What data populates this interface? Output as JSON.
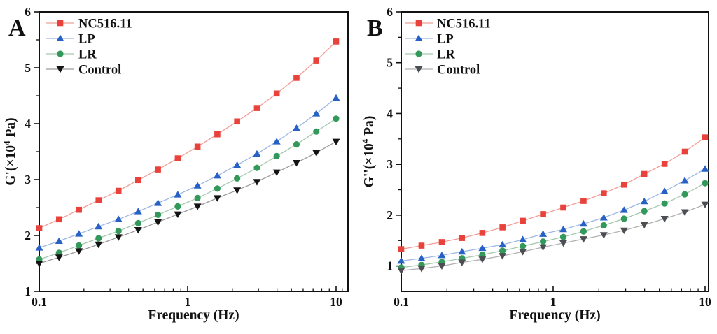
{
  "figure": {
    "background": "#ffffff",
    "border_color": "#111111",
    "panels": [
      {
        "label": "A"
      },
      {
        "label": "B"
      }
    ]
  },
  "chart_data": [
    {
      "type": "line",
      "panel": "A",
      "title": "",
      "legend_position": "top-left",
      "grid": false,
      "x": [
        0.1,
        0.136,
        0.185,
        0.251,
        0.342,
        0.464,
        0.631,
        0.858,
        1.166,
        1.585,
        2.154,
        2.929,
        3.981,
        5.412,
        7.356,
        10
      ],
      "x_axis": {
        "scale": "log",
        "label": "Frequency（Hz）",
        "major_ticks": [
          0.1,
          1,
          10
        ],
        "tick_labels": [
          "0.1",
          "1",
          "10"
        ],
        "minor_ticks": [
          0.2,
          0.3,
          0.4,
          0.5,
          0.6,
          0.7,
          0.8,
          0.9,
          2,
          3,
          4,
          5,
          6,
          7,
          8,
          9,
          11
        ],
        "range": [
          0.1,
          12
        ]
      },
      "y_axis": {
        "label": "G'(×10⁴ Pa)",
        "label_parts": {
          "prefix": "G'(×10",
          "sup": "4",
          "suffix": " Pa)"
        },
        "major_ticks": [
          1,
          2,
          3,
          4,
          5,
          6
        ],
        "tick_labels": [
          "1",
          "2",
          "3",
          "4",
          "5",
          "6"
        ],
        "minor_ticks": [
          1.5,
          2.5,
          3.5,
          4.5,
          5.5
        ],
        "range": [
          1,
          6
        ]
      },
      "series": [
        {
          "name": "NC516.11",
          "marker": "square",
          "marker_color": "#e8423a",
          "line_color": "#f19d98",
          "values": [
            2.13,
            2.29,
            2.46,
            2.63,
            2.8,
            2.99,
            3.18,
            3.38,
            3.59,
            3.81,
            4.04,
            4.28,
            4.54,
            4.82,
            5.13,
            5.47
          ]
        },
        {
          "name": "LP",
          "marker": "triangle-up",
          "marker_color": "#2761c5",
          "line_color": "#9fb8e3",
          "values": [
            1.78,
            1.9,
            2.03,
            2.16,
            2.29,
            2.43,
            2.58,
            2.73,
            2.89,
            3.07,
            3.26,
            3.46,
            3.68,
            3.92,
            4.18,
            4.46
          ]
        },
        {
          "name": "LR",
          "marker": "circle",
          "marker_color": "#33995a",
          "line_color": "#a5c9af",
          "values": [
            1.57,
            1.69,
            1.82,
            1.95,
            2.08,
            2.22,
            2.37,
            2.52,
            2.67,
            2.84,
            3.02,
            3.21,
            3.42,
            3.63,
            3.86,
            4.09
          ]
        },
        {
          "name": "Control",
          "marker": "triangle-down",
          "marker_color": "#131313",
          "line_color": "#9b9b9b",
          "values": [
            1.5,
            1.61,
            1.72,
            1.84,
            1.97,
            2.1,
            2.24,
            2.38,
            2.52,
            2.67,
            2.81,
            2.96,
            3.13,
            3.3,
            3.48,
            3.68
          ]
        }
      ]
    },
    {
      "type": "line",
      "panel": "B",
      "title": "",
      "legend_position": "top-left",
      "grid": false,
      "x": [
        0.1,
        0.136,
        0.185,
        0.251,
        0.342,
        0.464,
        0.631,
        0.858,
        1.166,
        1.585,
        2.154,
        2.929,
        3.981,
        5.412,
        7.356,
        10
      ],
      "x_axis": {
        "scale": "log",
        "label": "Frequency（Hz）",
        "major_ticks": [
          0.1,
          1,
          10
        ],
        "tick_labels": [
          "0.1",
          "1",
          "10"
        ],
        "minor_ticks": [
          0.2,
          0.3,
          0.4,
          0.5,
          0.6,
          0.7,
          0.8,
          0.9,
          2,
          3,
          4,
          5,
          6,
          7,
          8,
          9,
          11
        ],
        "range": [
          0.1,
          10.5
        ]
      },
      "y_axis": {
        "label": "G''(×10⁴ Pa)",
        "label_parts": {
          "prefix": "G''(×10",
          "sup": "4",
          "suffix": " Pa)"
        },
        "major_ticks": [
          1,
          2,
          3,
          4,
          5,
          6
        ],
        "tick_labels": [
          "1",
          "2",
          "3",
          "4",
          "5",
          "6"
        ],
        "minor_ticks": [
          1.5,
          2.5,
          3.5,
          4.5,
          5.5
        ],
        "range": [
          0.5,
          6
        ]
      },
      "series": [
        {
          "name": "NC516.11",
          "marker": "square",
          "marker_color": "#e8423a",
          "line_color": "#f19d98",
          "values": [
            1.33,
            1.4,
            1.47,
            1.55,
            1.65,
            1.76,
            1.89,
            2.02,
            2.15,
            2.28,
            2.43,
            2.6,
            2.81,
            3.01,
            3.25,
            3.53
          ]
        },
        {
          "name": "LP",
          "marker": "triangle-up",
          "marker_color": "#2761c5",
          "line_color": "#9fb8e3",
          "values": [
            1.1,
            1.15,
            1.21,
            1.28,
            1.35,
            1.42,
            1.52,
            1.63,
            1.72,
            1.83,
            1.95,
            2.1,
            2.27,
            2.47,
            2.68,
            2.91
          ]
        },
        {
          "name": "LR",
          "marker": "circle",
          "marker_color": "#33995a",
          "line_color": "#a5c9af",
          "values": [
            0.97,
            1.02,
            1.08,
            1.15,
            1.22,
            1.3,
            1.39,
            1.48,
            1.57,
            1.68,
            1.8,
            1.93,
            2.08,
            2.23,
            2.41,
            2.63
          ]
        },
        {
          "name": "Control",
          "marker": "triangle-down",
          "marker_color": "#4b4e52",
          "line_color": "#b2b2b2",
          "values": [
            0.91,
            0.95,
            1.0,
            1.07,
            1.13,
            1.2,
            1.28,
            1.37,
            1.45,
            1.53,
            1.61,
            1.7,
            1.81,
            1.93,
            2.06,
            2.21
          ]
        }
      ]
    }
  ]
}
